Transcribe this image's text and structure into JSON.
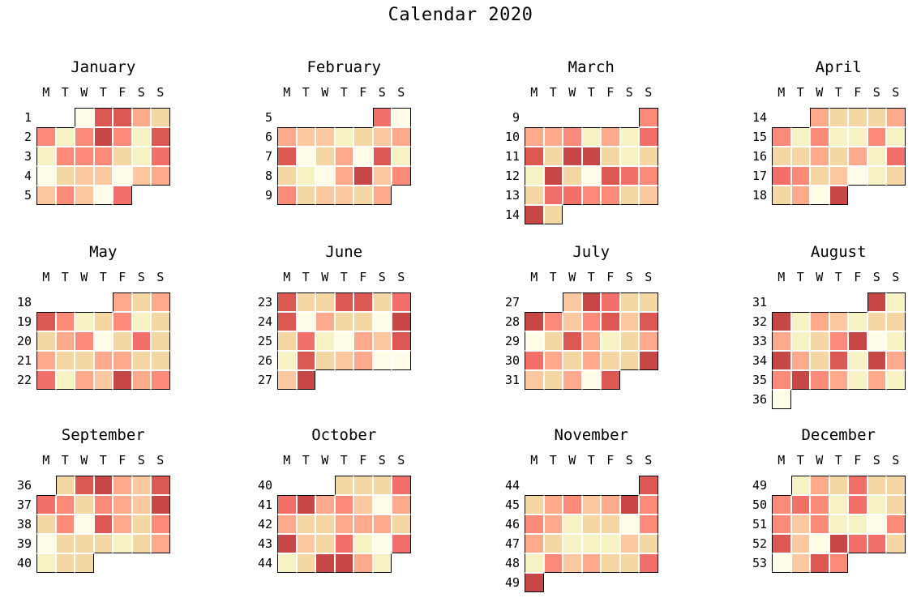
{
  "title": "Calendar 2020",
  "chart_data": {
    "type": "heatmap",
    "title": "Calendar 2020",
    "subtitle": "",
    "day_headers": [
      "M",
      "T",
      "W",
      "T",
      "F",
      "S",
      "S"
    ],
    "legend": "none",
    "grid": "stepped month outlines, white gaps between day cells",
    "value_scale_note": "cell values are color intensity levels 0 (lightest cream) to 8 (darkest red)",
    "palette": [
      "#fffde8",
      "#f7f2c3",
      "#f5d7a3",
      "#fcc89f",
      "#fcaa8b",
      "#fb8a79",
      "#f3706a",
      "#dc5853",
      "#c74646"
    ],
    "months": [
      {
        "name": "January",
        "weeks": [
          1,
          2,
          3,
          4,
          5
        ],
        "cells": [
          [
            null,
            null,
            0,
            7,
            7,
            4,
            2
          ],
          [
            5,
            1,
            5,
            8,
            5,
            1,
            7
          ],
          [
            1,
            5,
            5,
            5,
            2,
            1,
            6
          ],
          [
            0,
            2,
            3,
            3,
            0,
            3,
            4
          ],
          [
            3,
            5,
            3,
            0,
            6,
            null,
            null
          ]
        ]
      },
      {
        "name": "February",
        "weeks": [
          5,
          6,
          7,
          8,
          9
        ],
        "cells": [
          [
            null,
            null,
            null,
            null,
            null,
            6,
            0
          ],
          [
            4,
            3,
            3,
            1,
            2,
            3,
            4
          ],
          [
            7,
            0,
            2,
            4,
            0,
            7,
            1
          ],
          [
            2,
            1,
            0,
            4,
            8,
            3,
            5
          ],
          [
            5,
            2,
            3,
            3,
            2,
            4,
            null
          ]
        ]
      },
      {
        "name": "March",
        "weeks": [
          9,
          10,
          11,
          12,
          13,
          14
        ],
        "cells": [
          [
            null,
            null,
            null,
            null,
            null,
            null,
            5
          ],
          [
            4,
            4,
            5,
            1,
            4,
            1,
            6
          ],
          [
            7,
            2,
            8,
            8,
            2,
            1,
            2
          ],
          [
            1,
            8,
            2,
            0,
            7,
            6,
            5
          ],
          [
            2,
            6,
            6,
            5,
            5,
            2,
            3
          ],
          [
            8,
            2,
            null,
            null,
            null,
            null,
            null
          ]
        ]
      },
      {
        "name": "April",
        "weeks": [
          14,
          15,
          16,
          17,
          18
        ],
        "cells": [
          [
            null,
            null,
            4,
            2,
            2,
            2,
            4
          ],
          [
            5,
            1,
            5,
            1,
            1,
            5,
            1
          ],
          [
            2,
            2,
            4,
            2,
            4,
            1,
            6
          ],
          [
            6,
            5,
            2,
            3,
            0,
            1,
            2
          ],
          [
            2,
            4,
            0,
            8,
            null,
            null,
            null
          ]
        ]
      },
      {
        "name": "May",
        "weeks": [
          18,
          19,
          20,
          21,
          22
        ],
        "cells": [
          [
            null,
            null,
            null,
            null,
            4,
            2,
            4
          ],
          [
            7,
            5,
            1,
            2,
            5,
            1,
            2
          ],
          [
            2,
            4,
            5,
            0,
            2,
            6,
            2
          ],
          [
            4,
            2,
            2,
            4,
            4,
            2,
            2
          ],
          [
            6,
            1,
            4,
            3,
            8,
            4,
            5
          ]
        ]
      },
      {
        "name": "June",
        "weeks": [
          23,
          24,
          25,
          26,
          27
        ],
        "cells": [
          [
            7,
            2,
            2,
            7,
            7,
            2,
            6
          ],
          [
            7,
            0,
            4,
            2,
            2,
            0,
            8
          ],
          [
            2,
            6,
            1,
            0,
            4,
            3,
            7
          ],
          [
            1,
            7,
            2,
            3,
            4,
            0,
            0
          ],
          [
            3,
            8,
            null,
            null,
            null,
            null,
            null
          ]
        ]
      },
      {
        "name": "July",
        "weeks": [
          27,
          28,
          29,
          30,
          31
        ],
        "cells": [
          [
            null,
            null,
            3,
            8,
            6,
            2,
            2
          ],
          [
            8,
            5,
            3,
            5,
            7,
            3,
            7
          ],
          [
            0,
            2,
            7,
            4,
            1,
            2,
            4
          ],
          [
            6,
            4,
            2,
            4,
            2,
            2,
            8
          ],
          [
            3,
            2,
            4,
            0,
            7,
            null,
            null
          ]
        ]
      },
      {
        "name": "August",
        "weeks": [
          31,
          32,
          33,
          34,
          35,
          36
        ],
        "cells": [
          [
            null,
            null,
            null,
            null,
            null,
            8,
            1
          ],
          [
            8,
            1,
            4,
            3,
            1,
            2,
            2
          ],
          [
            4,
            1,
            2,
            5,
            8,
            0,
            1
          ],
          [
            8,
            4,
            2,
            7,
            1,
            8,
            4
          ],
          [
            5,
            8,
            5,
            4,
            1,
            4,
            1
          ],
          [
            0,
            null,
            null,
            null,
            null,
            null,
            null
          ]
        ]
      },
      {
        "name": "September",
        "weeks": [
          36,
          37,
          38,
          39,
          40
        ],
        "cells": [
          [
            null,
            2,
            7,
            8,
            4,
            3,
            7
          ],
          [
            6,
            5,
            2,
            5,
            4,
            3,
            8
          ],
          [
            2,
            5,
            0,
            7,
            4,
            2,
            5
          ],
          [
            0,
            2,
            2,
            2,
            1,
            2,
            4
          ],
          [
            1,
            2,
            2,
            null,
            null,
            null,
            null
          ]
        ]
      },
      {
        "name": "October",
        "weeks": [
          40,
          41,
          42,
          43,
          44
        ],
        "cells": [
          [
            null,
            null,
            null,
            2,
            2,
            2,
            6
          ],
          [
            6,
            8,
            4,
            5,
            3,
            0,
            4
          ],
          [
            4,
            2,
            2,
            4,
            4,
            4,
            2
          ],
          [
            8,
            3,
            2,
            6,
            1,
            0,
            6
          ],
          [
            1,
            2,
            8,
            8,
            4,
            1,
            null
          ]
        ]
      },
      {
        "name": "November",
        "weeks": [
          44,
          45,
          46,
          47,
          48,
          49
        ],
        "cells": [
          [
            null,
            null,
            null,
            null,
            null,
            null,
            7
          ],
          [
            2,
            4,
            5,
            3,
            4,
            8,
            5
          ],
          [
            5,
            4,
            1,
            2,
            2,
            0,
            5
          ],
          [
            4,
            2,
            1,
            1,
            1,
            3,
            2
          ],
          [
            1,
            5,
            3,
            4,
            2,
            2,
            6
          ],
          [
            8,
            null,
            null,
            null,
            null,
            null,
            null
          ]
        ]
      },
      {
        "name": "December",
        "weeks": [
          49,
          50,
          51,
          52,
          53
        ],
        "cells": [
          [
            null,
            1,
            4,
            2,
            6,
            2,
            2
          ],
          [
            5,
            6,
            5,
            1,
            6,
            1,
            2
          ],
          [
            5,
            3,
            5,
            1,
            1,
            0,
            5
          ],
          [
            7,
            3,
            0,
            8,
            6,
            6,
            2
          ],
          [
            0,
            3,
            7,
            5,
            null,
            null,
            null
          ]
        ]
      }
    ]
  }
}
